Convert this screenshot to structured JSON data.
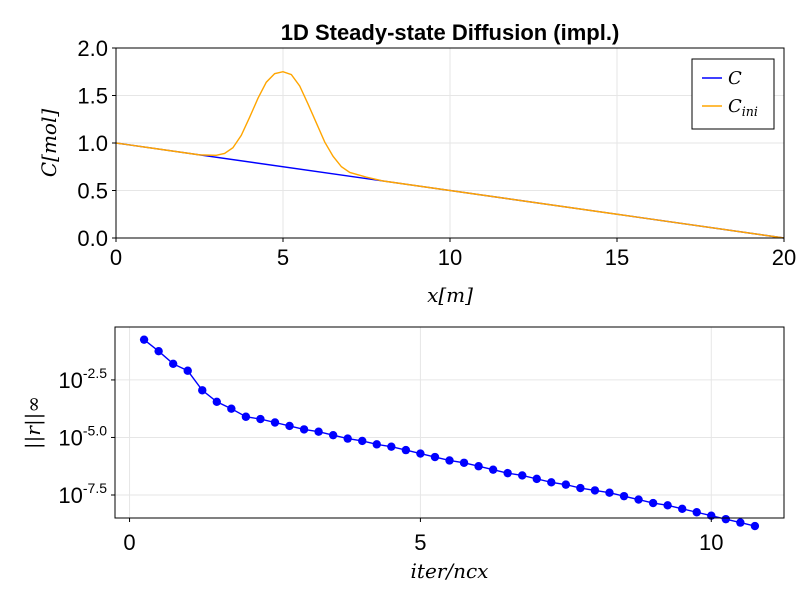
{
  "chart_data": [
    {
      "type": "line",
      "title": "1D Steady-state Diffusion (impl.)",
      "xlabel": "x[m]",
      "ylabel": "C[mol]",
      "xlim": [
        0,
        20
      ],
      "ylim": [
        0,
        2
      ],
      "xticks": [
        "0",
        "5",
        "10",
        "15",
        "20"
      ],
      "yticks": [
        "0.0",
        "0.5",
        "1.0",
        "1.5",
        "2.0"
      ],
      "grid": true,
      "legend": "top-right",
      "series": [
        {
          "name": "C",
          "color": "#0000ff",
          "x": [
            0,
            20
          ],
          "y": [
            1.0,
            0.0
          ]
        },
        {
          "name": "C_ini",
          "color": "#ffa500",
          "x": [
            0,
            1,
            2,
            2.5,
            3,
            3.25,
            3.5,
            3.75,
            4,
            4.25,
            4.5,
            4.75,
            5,
            5.25,
            5.5,
            5.75,
            6,
            6.25,
            6.5,
            6.75,
            7,
            7.5,
            8,
            10,
            15,
            20
          ],
          "y": [
            1.0,
            0.95,
            0.9,
            0.875,
            0.87,
            0.89,
            0.95,
            1.08,
            1.27,
            1.47,
            1.64,
            1.73,
            1.75,
            1.72,
            1.6,
            1.41,
            1.21,
            1.01,
            0.86,
            0.75,
            0.69,
            0.64,
            0.6,
            0.5,
            0.25,
            0.0
          ]
        }
      ]
    },
    {
      "type": "scatter",
      "xlabel": "iter/ncx",
      "ylabel": "||r||∞",
      "yscale": "log10",
      "xlim": [
        -0.25,
        11.25
      ],
      "ylim": [
        -8.5,
        -0.2
      ],
      "xticks": [
        "0",
        "5",
        "10"
      ],
      "yticks": [
        {
          "base": "10",
          "exp": "-7.5"
        },
        {
          "base": "10",
          "exp": "-5.0"
        },
        {
          "base": "10",
          "exp": "-2.5"
        }
      ],
      "grid": true,
      "series": [
        {
          "name": "",
          "color": "#0000ff",
          "x": [
            0.25,
            0.5,
            0.75,
            1.0,
            1.25,
            1.5,
            1.75,
            2.0,
            2.25,
            2.5,
            2.75,
            3.0,
            3.25,
            3.5,
            3.75,
            4.0,
            4.25,
            4.5,
            4.75,
            5.0,
            5.25,
            5.5,
            5.75,
            6.0,
            6.25,
            6.5,
            6.75,
            7.0,
            7.25,
            7.5,
            7.75,
            8.0,
            8.25,
            8.5,
            8.75,
            9.0,
            9.25,
            9.5,
            9.75,
            10.0,
            10.25,
            10.5,
            10.75
          ],
          "y": [
            -0.75,
            -1.25,
            -1.8,
            -2.1,
            -2.95,
            -3.45,
            -3.75,
            -4.1,
            -4.2,
            -4.35,
            -4.5,
            -4.65,
            -4.75,
            -4.9,
            -5.05,
            -5.15,
            -5.3,
            -5.4,
            -5.55,
            -5.7,
            -5.85,
            -6.0,
            -6.1,
            -6.25,
            -6.4,
            -6.55,
            -6.65,
            -6.8,
            -6.95,
            -7.05,
            -7.2,
            -7.3,
            -7.4,
            -7.55,
            -7.7,
            -7.85,
            -7.95,
            -8.1,
            -8.25,
            -8.4,
            -8.55,
            -8.7,
            -8.85
          ]
        }
      ]
    }
  ]
}
